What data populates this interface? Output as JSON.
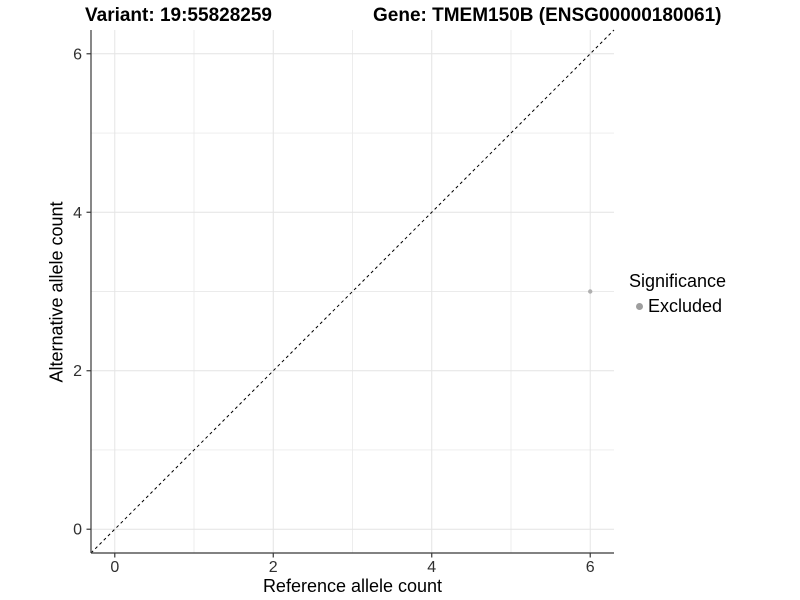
{
  "chart_data": {
    "type": "scatter",
    "title_left": "Variant: 19:55828259",
    "title_right": "Gene: TMEM150B (ENSG00000180061)",
    "xlabel": "Reference allele count",
    "ylabel": "Alternative allele count",
    "xlim": [
      -0.3,
      6.3
    ],
    "ylim": [
      -0.3,
      6.3
    ],
    "x_ticks": [
      0,
      2,
      4,
      6
    ],
    "y_ticks": [
      0,
      2,
      4,
      6
    ],
    "x_minor_ticks": [
      1,
      3,
      5
    ],
    "y_minor_ticks": [
      1,
      3,
      5
    ],
    "grid": true,
    "identity_line": {
      "style": "dashed",
      "from": [
        -0.3,
        -0.3
      ],
      "to": [
        6.3,
        6.3
      ]
    },
    "series": [
      {
        "name": "Excluded",
        "color": "#b0b0b0",
        "points": [
          [
            6,
            3
          ]
        ]
      }
    ],
    "legend": {
      "title": "Significance",
      "position": "right",
      "items": [
        {
          "label": "Excluded",
          "color": "#9e9e9e"
        }
      ]
    },
    "colors": {
      "grid_major": "#e4e4e4",
      "grid_minor": "#ebebeb",
      "axis": "#383838",
      "tick_label": "#303030",
      "identity_line": "#000000",
      "point": "#b0b0b0",
      "legend_point": "#9e9e9e"
    }
  }
}
